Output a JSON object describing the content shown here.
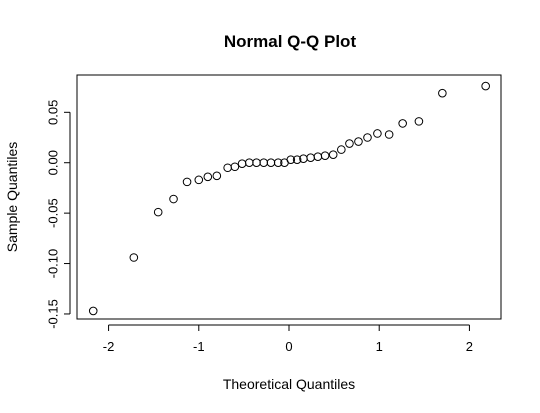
{
  "chart_data": {
    "type": "scatter",
    "title": "Normal Q-Q Plot",
    "xlabel": "Theoretical Quantiles",
    "ylabel": "Sample Quantiles",
    "xlim": [
      -2.35,
      2.35
    ],
    "ylim": [
      -0.155,
      0.087
    ],
    "grid": false,
    "x_ticks": [
      -2,
      -1,
      0,
      1,
      2
    ],
    "x_tick_labels": [
      "-2",
      "-1",
      "0",
      "1",
      "2"
    ],
    "y_ticks": [
      -0.15,
      -0.1,
      -0.05,
      0.0,
      0.05
    ],
    "y_tick_labels": [
      "-0.15",
      "-0.10",
      "-0.05",
      "0.00",
      "0.05"
    ],
    "points": [
      {
        "x": -2.17,
        "y": -0.147
      },
      {
        "x": -1.72,
        "y": -0.094
      },
      {
        "x": -1.45,
        "y": -0.049
      },
      {
        "x": -1.28,
        "y": -0.036
      },
      {
        "x": -1.13,
        "y": -0.019
      },
      {
        "x": -1.0,
        "y": -0.017
      },
      {
        "x": -0.9,
        "y": -0.014
      },
      {
        "x": -0.8,
        "y": -0.013
      },
      {
        "x": -0.68,
        "y": -0.005
      },
      {
        "x": -0.6,
        "y": -0.004
      },
      {
        "x": -0.52,
        "y": -0.001
      },
      {
        "x": -0.44,
        "y": 0.0
      },
      {
        "x": -0.36,
        "y": 0.0
      },
      {
        "x": -0.28,
        "y": 0.0
      },
      {
        "x": -0.2,
        "y": 0.0
      },
      {
        "x": -0.12,
        "y": 0.0
      },
      {
        "x": -0.05,
        "y": 0.0
      },
      {
        "x": 0.02,
        "y": 0.003
      },
      {
        "x": 0.09,
        "y": 0.003
      },
      {
        "x": 0.16,
        "y": 0.004
      },
      {
        "x": 0.24,
        "y": 0.005
      },
      {
        "x": 0.32,
        "y": 0.006
      },
      {
        "x": 0.4,
        "y": 0.007
      },
      {
        "x": 0.49,
        "y": 0.008
      },
      {
        "x": 0.58,
        "y": 0.013
      },
      {
        "x": 0.67,
        "y": 0.019
      },
      {
        "x": 0.77,
        "y": 0.021
      },
      {
        "x": 0.87,
        "y": 0.025
      },
      {
        "x": 0.98,
        "y": 0.029
      },
      {
        "x": 1.11,
        "y": 0.028
      },
      {
        "x": 1.26,
        "y": 0.039
      },
      {
        "x": 1.44,
        "y": 0.041
      },
      {
        "x": 1.7,
        "y": 0.069
      },
      {
        "x": 2.18,
        "y": 0.076
      }
    ]
  }
}
